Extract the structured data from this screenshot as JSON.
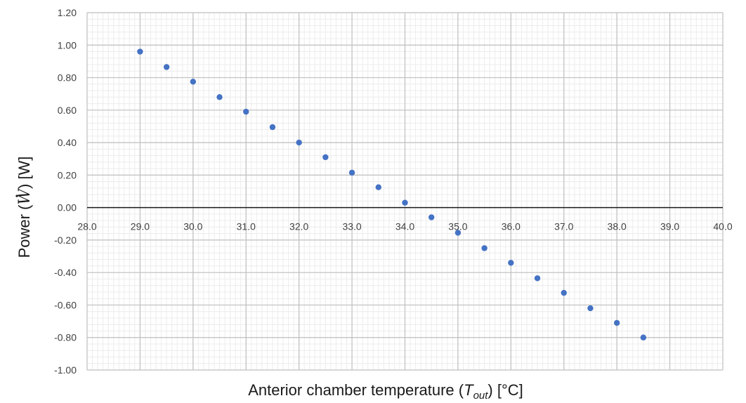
{
  "chart_data": {
    "type": "scatter",
    "xlabel": "Anterior chamber temperature (T_out) [°C]",
    "xlabel_parts": {
      "before": "Anterior chamber temperature (",
      "symbol": "T",
      "subscript": "out",
      "after": ")   [°C]"
    },
    "ylabel": "Power (Ẇ) [W]",
    "ylabel_parts": {
      "before": "Power (",
      "symbol": "W",
      "after": ")  [W]"
    },
    "xlim": [
      28.0,
      40.0
    ],
    "ylim": [
      -1.0,
      1.2
    ],
    "x_ticks": [
      "28.0",
      "29.0",
      "30.0",
      "31.0",
      "32.0",
      "33.0",
      "34.0",
      "35.0",
      "36.0",
      "37.0",
      "38.0",
      "39.0",
      "40.0"
    ],
    "y_ticks": [
      "1.20",
      "1.00",
      "0.80",
      "0.60",
      "0.40",
      "0.20",
      "0.00",
      "-0.20",
      "-0.40",
      "-0.60",
      "-0.80",
      "-1.00"
    ],
    "y_tick_values": [
      1.2,
      1.0,
      0.8,
      0.6,
      0.4,
      0.2,
      0.0,
      -0.2,
      -0.4,
      -0.6,
      -0.8,
      -1.0
    ],
    "grid": true,
    "minor_grid": true,
    "marker_color": "#4472c4",
    "series": [
      {
        "x": [
          29.0,
          29.5,
          30.0,
          30.5,
          31.0,
          31.5,
          32.0,
          32.5,
          33.0,
          33.5,
          34.0,
          34.5,
          35.0,
          35.5,
          36.0,
          36.5,
          37.0,
          37.5,
          38.0,
          38.5
        ],
        "y": [
          0.96,
          0.865,
          0.775,
          0.68,
          0.59,
          0.495,
          0.4,
          0.31,
          0.215,
          0.125,
          0.03,
          -0.06,
          -0.155,
          -0.25,
          -0.34,
          -0.435,
          -0.525,
          -0.62,
          -0.71,
          -0.8
        ]
      }
    ]
  }
}
